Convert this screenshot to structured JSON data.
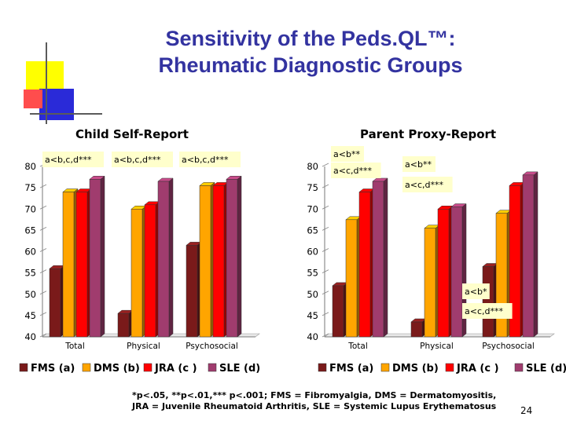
{
  "slide": {
    "title_lines": [
      "Sensitivity of the Peds.QL™:",
      "Rheumatic Diagnostic Groups"
    ],
    "footnote_lines": [
      "*p<.05, **p<.01,*** p<.001; FMS = Fibromyalgia, DMS = Dermatomyositis,",
      "JRA = Juvenile Rheumatoid Arthritis, SLE = Systemic Lupus Erythematosus"
    ],
    "page_number": "24"
  },
  "colors": {
    "title": "#3333a0",
    "FMS": "#7a1a1a",
    "DMS": "#ffa500",
    "JRA": "#ff0000",
    "SLE": "#a03c6e",
    "annotation_bg": "#ffffcc"
  },
  "chart_data": [
    {
      "type": "bar",
      "title": "Child Self-Report",
      "categories": [
        "Total",
        "Physical",
        "Psychosocial"
      ],
      "ylim": [
        40,
        80
      ],
      "yticks": [
        40,
        45,
        50,
        55,
        60,
        65,
        70,
        75,
        80
      ],
      "series": [
        {
          "name": "FMS (a)",
          "values": [
            56,
            45.5,
            61.5
          ]
        },
        {
          "name": "DMS (b)",
          "values": [
            74,
            70,
            75.5
          ]
        },
        {
          "name": "JRA (c )",
          "values": [
            74,
            71,
            75.5
          ]
        },
        {
          "name": "SLE (d)",
          "values": [
            77,
            76.5,
            77
          ]
        }
      ],
      "annotations": [
        {
          "category": "Total",
          "lines": [
            "a<b,c,d***"
          ]
        },
        {
          "category": "Physical",
          "lines": [
            "a<b,c,d***"
          ]
        },
        {
          "category": "Psychosocial",
          "lines": [
            "a<b,c,d***"
          ]
        }
      ],
      "legend_position": "bottom",
      "grid": false
    },
    {
      "type": "bar",
      "title": "Parent Proxy-Report",
      "categories": [
        "Total",
        "Physical",
        "Psychosocial"
      ],
      "ylim": [
        40,
        80
      ],
      "yticks": [
        40,
        45,
        50,
        55,
        60,
        65,
        70,
        75,
        80
      ],
      "series": [
        {
          "name": "FMS (a)",
          "values": [
            52,
            43.5,
            56.5
          ]
        },
        {
          "name": "DMS (b)",
          "values": [
            67.5,
            65.5,
            69
          ]
        },
        {
          "name": "JRA (c )",
          "values": [
            74,
            70,
            75.5
          ]
        },
        {
          "name": "SLE (d)",
          "values": [
            76.5,
            70.5,
            78
          ]
        }
      ],
      "annotations": [
        {
          "category": "Total",
          "lines": [
            "a<b**",
            "a<c,d***"
          ]
        },
        {
          "category": "Physical",
          "lines": [
            "a<b**",
            "a<c,d***"
          ]
        },
        {
          "category": "Psychosocial",
          "lines": [
            "a<b*",
            "a<c,d***"
          ]
        }
      ],
      "legend_position": "bottom",
      "grid": false
    }
  ]
}
